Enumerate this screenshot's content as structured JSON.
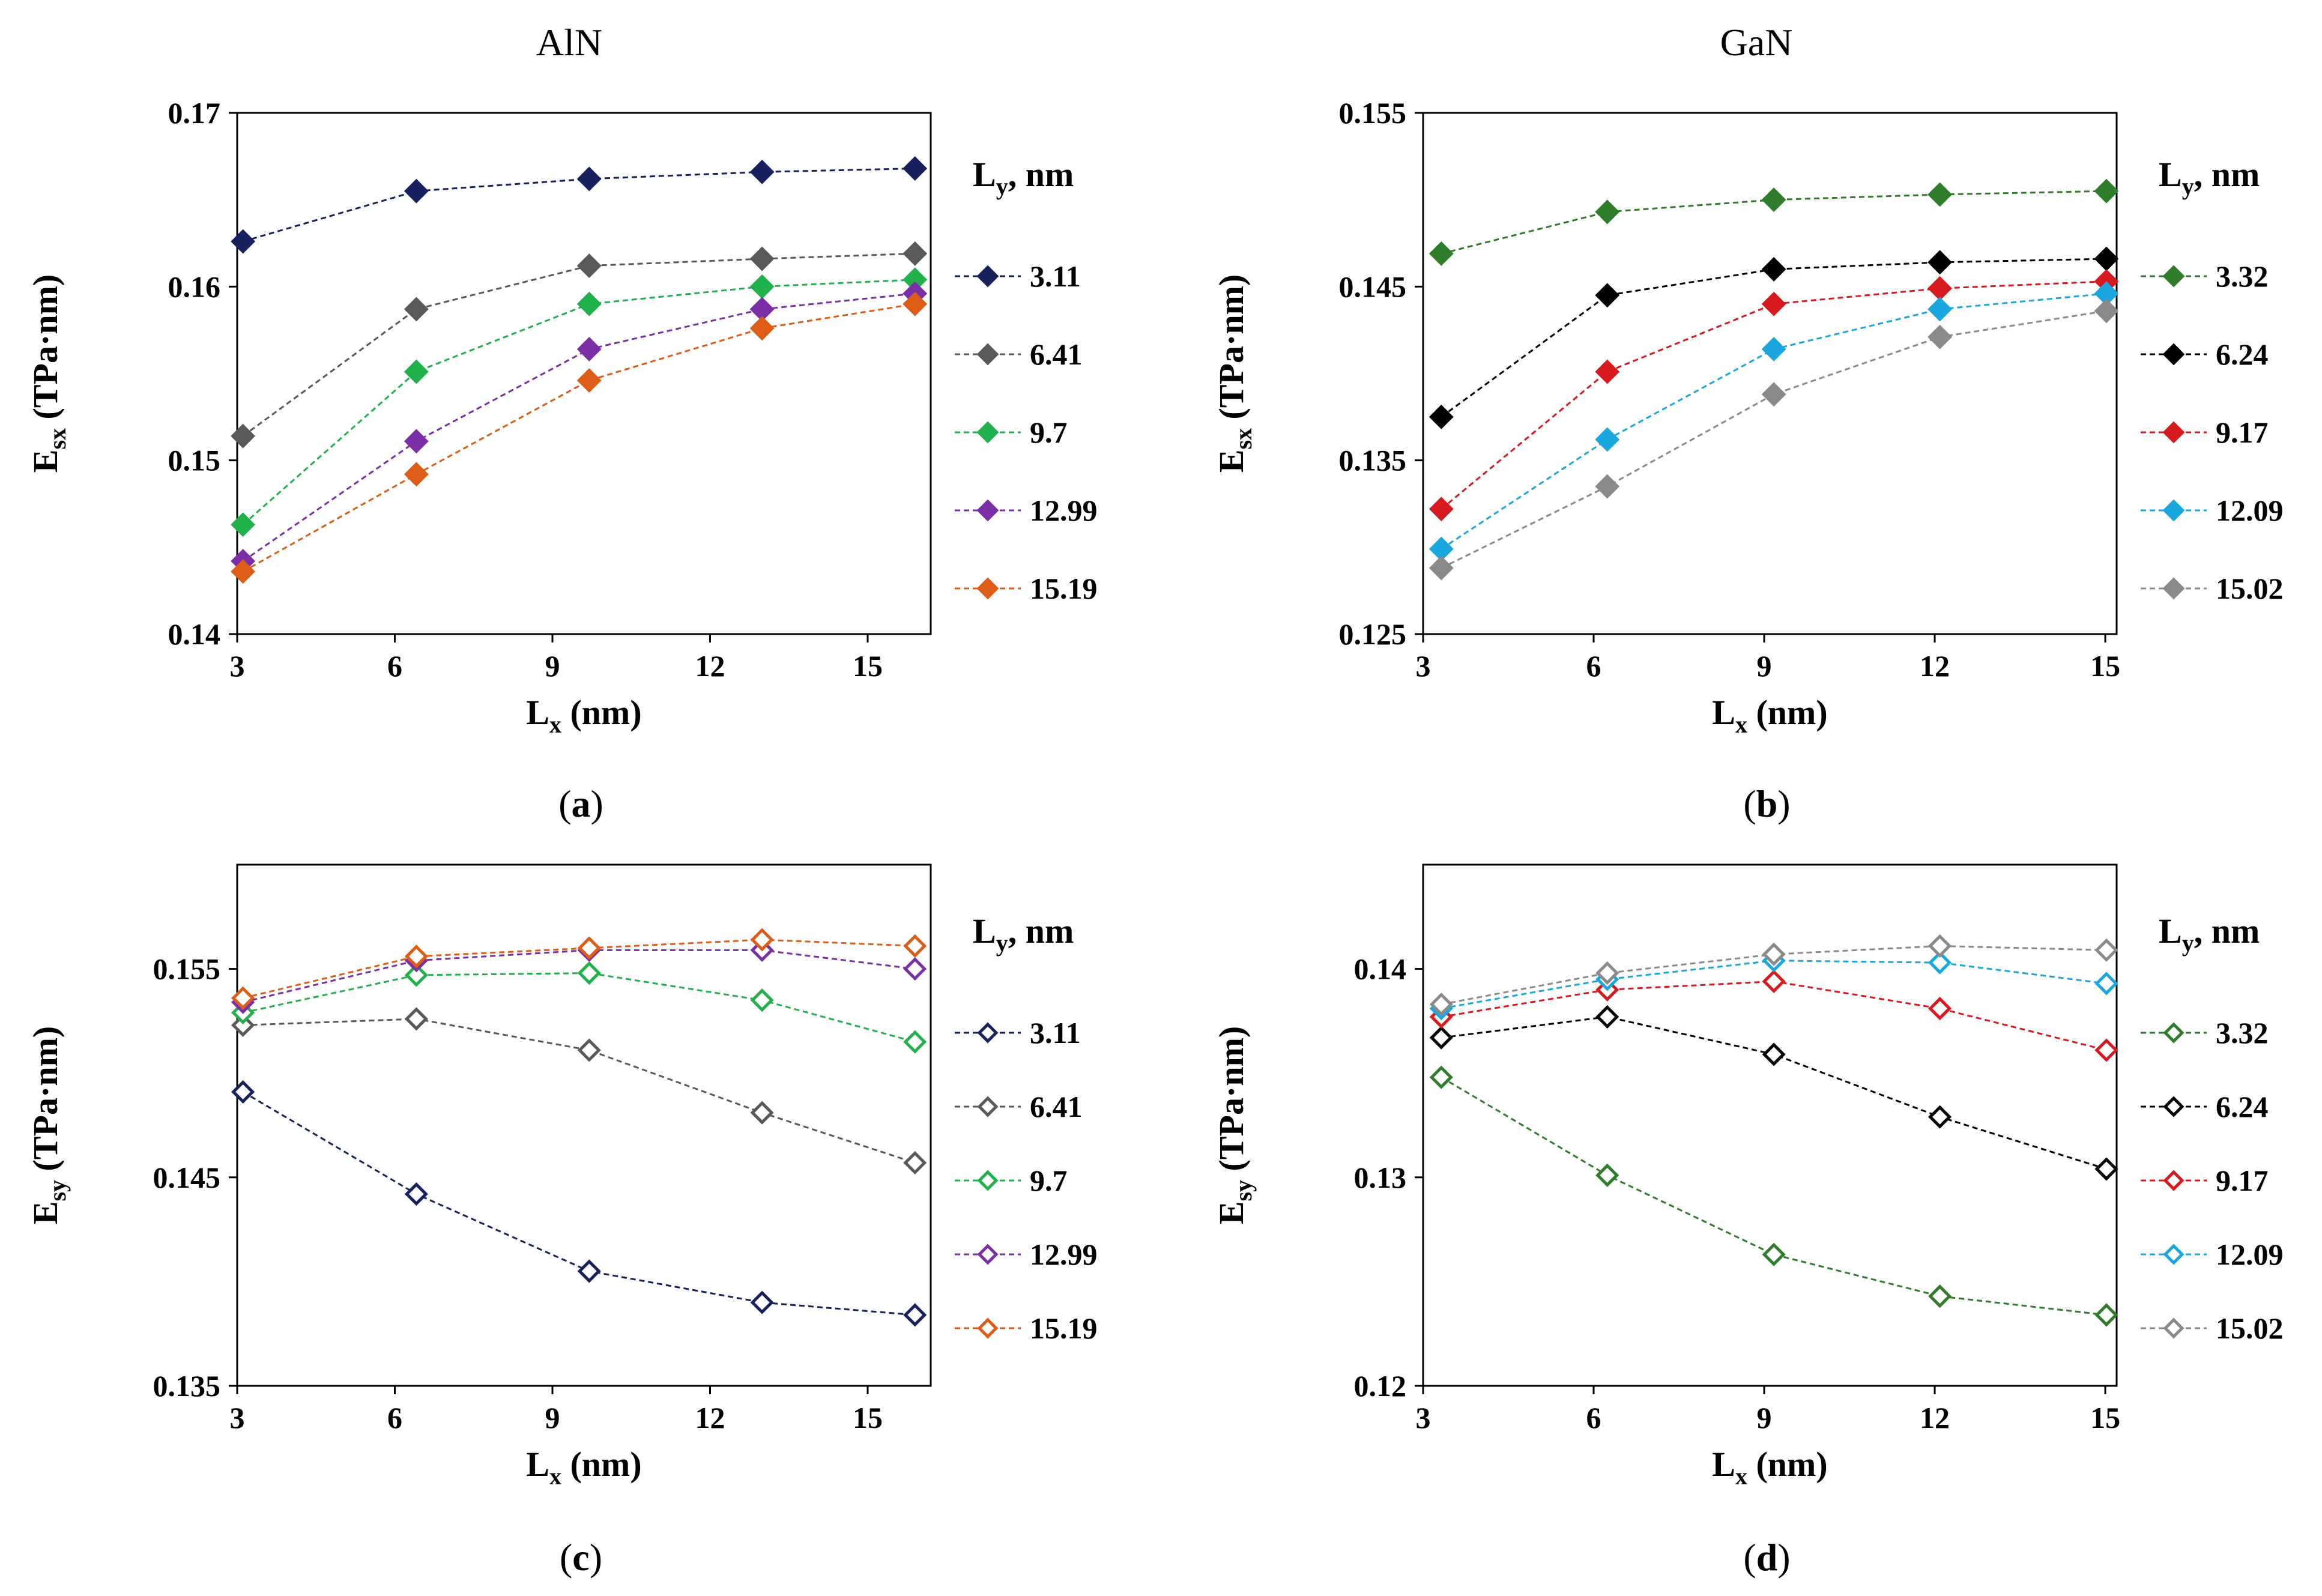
{
  "column_titles": [
    "AlN",
    "GaN"
  ],
  "chart_data": [
    {
      "type": "line",
      "caption_letter": "a",
      "xlabel_main": "L",
      "xlabel_sub": "x",
      "xlabel_unit": " (nm)",
      "ylabel_main": "E",
      "ylabel_sub": "sx",
      "ylabel_unit": " (TPa·nm)",
      "legend_title_main": "L",
      "legend_title_sub": "y",
      "legend_title_unit": ", nm",
      "marker": "filled-diamond",
      "xlim": [
        3,
        16.2
      ],
      "ylim": [
        0.14,
        0.17
      ],
      "xticks": [
        "3",
        "6",
        "9",
        "12",
        "15"
      ],
      "yticks": [
        "0.14",
        "0.15",
        "0.16",
        "0.17"
      ],
      "x": [
        3.11,
        6.41,
        9.7,
        12.99,
        15.9
      ],
      "series": [
        {
          "name": "3.11",
          "color": "#17215e",
          "values": [
            0.1626,
            0.1655,
            0.1662,
            0.1666,
            0.1668
          ]
        },
        {
          "name": "6.41",
          "color": "#595959",
          "values": [
            0.1514,
            0.1587,
            0.1612,
            0.1616,
            0.1619
          ]
        },
        {
          "name": "9.7",
          "color": "#21b14c",
          "values": [
            0.1463,
            0.1551,
            0.159,
            0.16,
            0.1604
          ]
        },
        {
          "name": "12.99",
          "color": "#7b2fa7",
          "values": [
            0.1442,
            0.1511,
            0.1564,
            0.1587,
            0.1596
          ]
        },
        {
          "name": "15.19",
          "color": "#dd5d17",
          "values": [
            0.1436,
            0.1492,
            0.1546,
            0.1576,
            0.159
          ]
        }
      ]
    },
    {
      "type": "line",
      "caption_letter": "b",
      "xlabel_main": "L",
      "xlabel_sub": "x",
      "xlabel_unit": " (nm)",
      "ylabel_main": "E",
      "ylabel_sub": "sx",
      "ylabel_unit": " (TPa·nm)",
      "legend_title_main": "L",
      "legend_title_sub": "y",
      "legend_title_unit": ", nm",
      "marker": "filled-diamond",
      "xlim": [
        3,
        15.2
      ],
      "ylim": [
        0.125,
        0.155
      ],
      "xticks": [
        "3",
        "6",
        "9",
        "12",
        "15"
      ],
      "yticks": [
        "0.125",
        "0.135",
        "0.145",
        "0.155"
      ],
      "x": [
        3.32,
        6.24,
        9.17,
        12.09,
        15.02
      ],
      "series": [
        {
          "name": "3.32",
          "color": "#2f7d2a",
          "values": [
            0.1469,
            0.1493,
            0.15,
            0.1503,
            0.1505
          ]
        },
        {
          "name": "6.24",
          "color": "#000000",
          "values": [
            0.1375,
            0.1445,
            0.146,
            0.1464,
            0.1466
          ]
        },
        {
          "name": "9.17",
          "color": "#d71920",
          "values": [
            0.1322,
            0.1401,
            0.144,
            0.1449,
            0.1453
          ]
        },
        {
          "name": "12.09",
          "color": "#1aa7e0",
          "values": [
            0.1299,
            0.1362,
            0.1414,
            0.1437,
            0.1446
          ]
        },
        {
          "name": "15.02",
          "color": "#8a8a8a",
          "values": [
            0.1288,
            0.1335,
            0.1388,
            0.1421,
            0.1436
          ]
        }
      ]
    },
    {
      "type": "line",
      "caption_letter": "c",
      "xlabel_main": "L",
      "xlabel_sub": "x",
      "xlabel_unit": " (nm)",
      "ylabel_main": "E",
      "ylabel_sub": "sy",
      "ylabel_unit": " (TPa·nm)",
      "legend_title_main": "L",
      "legend_title_sub": "y",
      "legend_title_unit": ", nm",
      "marker": "open-diamond",
      "xlim": [
        3,
        16.2
      ],
      "ylim": [
        0.135,
        0.16
      ],
      "xticks": [
        "3",
        "6",
        "9",
        "12",
        "15"
      ],
      "yticks": [
        "0.135",
        "0.145",
        "0.155"
      ],
      "x": [
        3.11,
        6.41,
        9.7,
        12.99,
        15.9
      ],
      "series": [
        {
          "name": "3.11",
          "color": "#17215e",
          "values": [
            0.1491,
            0.1442,
            0.1405,
            0.139,
            0.1384
          ]
        },
        {
          "name": "6.41",
          "color": "#595959",
          "values": [
            0.1523,
            0.1526,
            0.1511,
            0.1481,
            0.1457
          ]
        },
        {
          "name": "9.7",
          "color": "#21b14c",
          "values": [
            0.1529,
            0.1547,
            0.1548,
            0.1535,
            0.1515
          ]
        },
        {
          "name": "12.99",
          "color": "#7b2fa7",
          "values": [
            0.1534,
            0.1554,
            0.1559,
            0.1559,
            0.155
          ]
        },
        {
          "name": "15.19",
          "color": "#dd5d17",
          "values": [
            0.1536,
            0.1556,
            0.156,
            0.1564,
            0.1561
          ]
        }
      ]
    },
    {
      "type": "line",
      "caption_letter": "d",
      "xlabel_main": "L",
      "xlabel_sub": "x",
      "xlabel_unit": " (nm)",
      "ylabel_main": "E",
      "ylabel_sub": "sy",
      "ylabel_unit": " (TPa·nm)",
      "legend_title_main": "L",
      "legend_title_sub": "y",
      "legend_title_unit": ", nm",
      "marker": "open-diamond",
      "xlim": [
        3,
        15.2
      ],
      "ylim": [
        0.12,
        0.145
      ],
      "xticks": [
        "3",
        "6",
        "9",
        "12",
        "15"
      ],
      "yticks": [
        "0.12",
        "0.13",
        "0.14"
      ],
      "x": [
        3.32,
        6.24,
        9.17,
        12.09,
        15.02
      ],
      "series": [
        {
          "name": "3.32",
          "color": "#2f7d2a",
          "values": [
            0.1348,
            0.1301,
            0.1263,
            0.1243,
            0.1234
          ]
        },
        {
          "name": "6.24",
          "color": "#000000",
          "values": [
            0.1367,
            0.1377,
            0.1359,
            0.1329,
            0.1304
          ]
        },
        {
          "name": "9.17",
          "color": "#d71920",
          "values": [
            0.1377,
            0.139,
            0.1394,
            0.1381,
            0.1361
          ]
        },
        {
          "name": "12.09",
          "color": "#1aa7e0",
          "values": [
            0.1381,
            0.1395,
            0.1404,
            0.1403,
            0.1393
          ]
        },
        {
          "name": "15.02",
          "color": "#8a8a8a",
          "values": [
            0.1383,
            0.1398,
            0.1407,
            0.1411,
            0.1409
          ]
        }
      ]
    }
  ]
}
